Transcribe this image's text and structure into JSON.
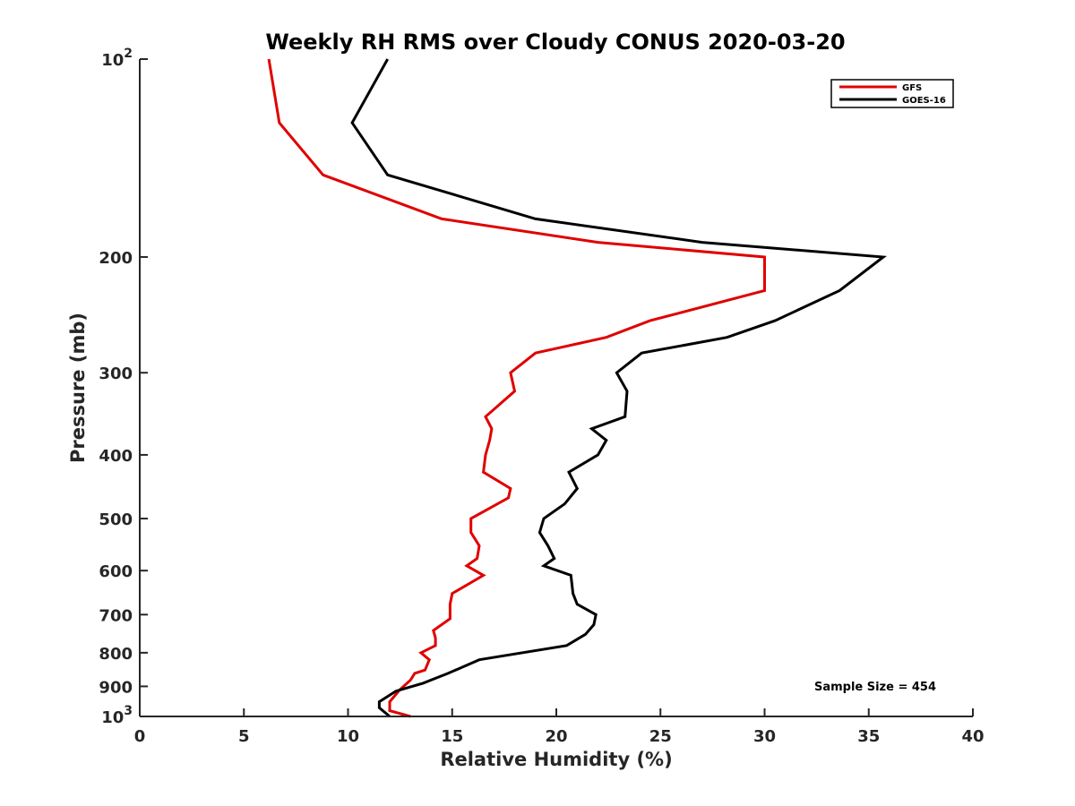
{
  "chart_data": {
    "type": "line",
    "title": "Weekly RH RMS over Cloudy CONUS 2020-03-20",
    "xlabel": "Relative Humidity (%)",
    "ylabel": "Pressure (mb)",
    "xlim": [
      0,
      40
    ],
    "ylim": [
      100,
      1000
    ],
    "y_scale": "log",
    "y_reversed": true,
    "x_ticks": [
      0,
      5,
      10,
      15,
      20,
      25,
      30,
      35,
      40
    ],
    "y_ticks": [
      {
        "value": 100,
        "base": "10",
        "exp": "2"
      },
      {
        "value": 200,
        "label": "200"
      },
      {
        "value": 300,
        "label": "300"
      },
      {
        "value": 400,
        "label": "400"
      },
      {
        "value": 500,
        "label": "500"
      },
      {
        "value": 600,
        "label": "600"
      },
      {
        "value": 700,
        "label": "700"
      },
      {
        "value": 800,
        "label": "800"
      },
      {
        "value": 900,
        "label": "900"
      },
      {
        "value": 1000,
        "base": "10",
        "exp": "3"
      }
    ],
    "grid": false,
    "legend_position": "top-right",
    "series": [
      {
        "name": "GFS",
        "color": "#e00000",
        "points": [
          [
            6.2,
            100
          ],
          [
            6.7,
            125
          ],
          [
            8.8,
            150
          ],
          [
            14.5,
            175
          ],
          [
            22.0,
            190
          ],
          [
            30.0,
            200
          ],
          [
            30.0,
            225
          ],
          [
            24.5,
            250
          ],
          [
            22.4,
            265
          ],
          [
            19.0,
            280
          ],
          [
            17.8,
            300
          ],
          [
            18.0,
            320
          ],
          [
            16.6,
            350
          ],
          [
            16.9,
            365
          ],
          [
            16.8,
            380
          ],
          [
            16.6,
            400
          ],
          [
            16.5,
            425
          ],
          [
            17.8,
            450
          ],
          [
            17.7,
            465
          ],
          [
            15.9,
            500
          ],
          [
            15.9,
            525
          ],
          [
            16.3,
            550
          ],
          [
            16.2,
            575
          ],
          [
            15.7,
            590
          ],
          [
            16.5,
            610
          ],
          [
            15.0,
            650
          ],
          [
            14.9,
            675
          ],
          [
            14.9,
            710
          ],
          [
            14.1,
            740
          ],
          [
            14.2,
            760
          ],
          [
            14.2,
            780
          ],
          [
            13.5,
            800
          ],
          [
            13.9,
            820
          ],
          [
            13.7,
            850
          ],
          [
            13.2,
            860
          ],
          [
            13.0,
            880
          ],
          [
            12.5,
            910
          ],
          [
            12.0,
            950
          ],
          [
            12.0,
            980
          ],
          [
            13.0,
            1000
          ]
        ]
      },
      {
        "name": "GOES-16",
        "color": "#000000",
        "points": [
          [
            11.9,
            100
          ],
          [
            10.2,
            125
          ],
          [
            11.9,
            150
          ],
          [
            19.0,
            175
          ],
          [
            27.0,
            190
          ],
          [
            35.7,
            200
          ],
          [
            33.6,
            225
          ],
          [
            30.5,
            250
          ],
          [
            28.2,
            265
          ],
          [
            24.1,
            280
          ],
          [
            22.9,
            300
          ],
          [
            23.4,
            320
          ],
          [
            23.3,
            350
          ],
          [
            21.7,
            365
          ],
          [
            22.4,
            380
          ],
          [
            22.0,
            400
          ],
          [
            20.6,
            425
          ],
          [
            21.0,
            450
          ],
          [
            20.4,
            475
          ],
          [
            19.4,
            500
          ],
          [
            19.2,
            525
          ],
          [
            19.6,
            550
          ],
          [
            19.9,
            575
          ],
          [
            19.4,
            590
          ],
          [
            20.7,
            610
          ],
          [
            20.8,
            650
          ],
          [
            21.0,
            675
          ],
          [
            21.9,
            700
          ],
          [
            21.8,
            725
          ],
          [
            21.4,
            750
          ],
          [
            20.5,
            780
          ],
          [
            16.3,
            820
          ],
          [
            14.8,
            860
          ],
          [
            13.6,
            890
          ],
          [
            12.3,
            915
          ],
          [
            11.5,
            950
          ],
          [
            11.5,
            970
          ],
          [
            12.0,
            1000
          ]
        ]
      }
    ],
    "annotation": "Sample Size = 454"
  }
}
